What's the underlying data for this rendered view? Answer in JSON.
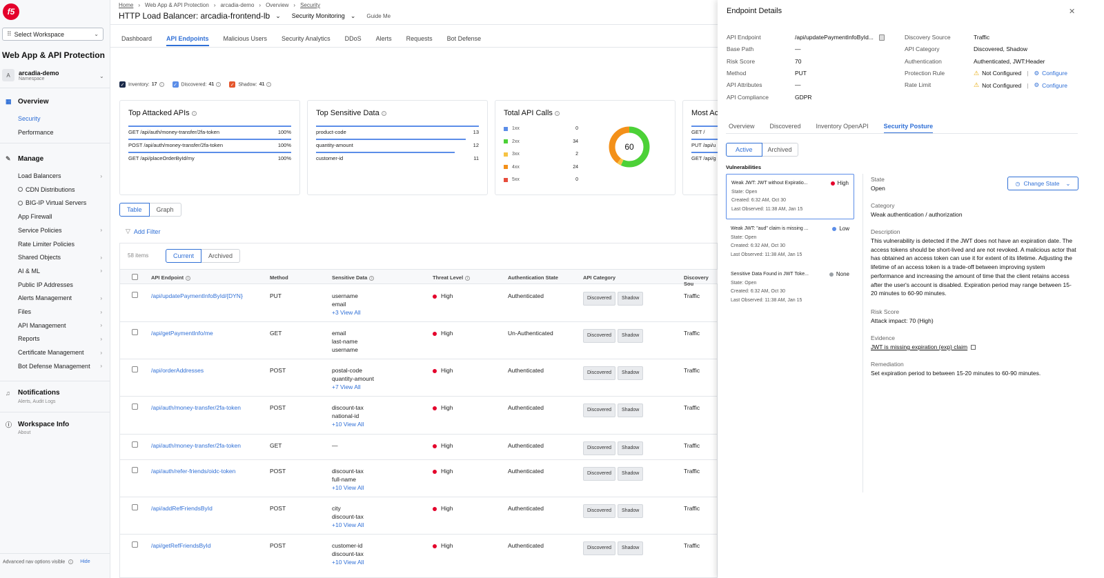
{
  "sidebar": {
    "logo": "f5",
    "workspace_select": "Select Workspace",
    "app_title": "Web App & API Protection",
    "namespace": {
      "avatar": "A",
      "name": "arcadia-demo",
      "label": "Namespace"
    },
    "overview": {
      "title": "Overview",
      "items": [
        "Security",
        "Performance"
      ]
    },
    "manage": {
      "title": "Manage",
      "items": [
        {
          "label": "Load Balancers",
          "chevron": true
        },
        {
          "label": "CDN Distributions",
          "chevron": false
        },
        {
          "label": "BIG-IP Virtual Servers",
          "chevron": false
        },
        {
          "label": "App Firewall",
          "chevron": false
        },
        {
          "label": "Service Policies",
          "chevron": true
        },
        {
          "label": "Rate Limiter Policies",
          "chevron": false
        },
        {
          "label": "Shared Objects",
          "chevron": true
        },
        {
          "label": "AI & ML",
          "chevron": true
        },
        {
          "label": "Public IP Addresses",
          "chevron": false
        },
        {
          "label": "Alerts Management",
          "chevron": true
        },
        {
          "label": "Files",
          "chevron": true
        },
        {
          "label": "API Management",
          "chevron": true
        },
        {
          "label": "Reports",
          "chevron": true
        },
        {
          "label": "Certificate Management",
          "chevron": true
        },
        {
          "label": "Bot Defense Management",
          "chevron": true
        }
      ]
    },
    "notifications": {
      "title": "Notifications",
      "sub": "Alerts, Audit Logs"
    },
    "workspace_info": {
      "title": "Workspace Info",
      "sub": "About"
    },
    "advanced": "Advanced nav options visible",
    "hide": "Hide"
  },
  "breadcrumb": [
    "Home",
    "Web App & API Protection",
    "arcadia-demo",
    "Overview",
    "Security"
  ],
  "header": {
    "title": "HTTP Load Balancer: arcadia-frontend-lb",
    "monitoring": "Security Monitoring",
    "guide": "Guide Me"
  },
  "tabs": [
    "Dashboard",
    "API Endpoints",
    "Malicious Users",
    "Security Analytics",
    "DDoS",
    "Alerts",
    "Requests",
    "Bot Defense"
  ],
  "legend": [
    {
      "label": "Inventory:",
      "count": "17",
      "color": "#1b2a4a"
    },
    {
      "label": "Discovered:",
      "count": "41",
      "color": "#5b8de8"
    },
    {
      "label": "Shadow:",
      "count": "41",
      "color": "#e4572e"
    }
  ],
  "cards": {
    "top_attacked": {
      "title": "Top Attacked APIs",
      "rows": [
        {
          "label": "GET /api/auth/money-transfer/2fa-token",
          "value": "100%",
          "pct": 1.0
        },
        {
          "label": "POST /api/auth/money-transfer/2fa-token",
          "value": "100%",
          "pct": 1.0
        },
        {
          "label": "GET /api/placeOrderById/my",
          "value": "100%",
          "pct": 1.0
        }
      ]
    },
    "top_sensitive": {
      "title": "Top Sensitive Data",
      "rows": [
        {
          "label": "product-code",
          "value": "13",
          "pct": 1.0
        },
        {
          "label": "quantity-amount",
          "value": "12",
          "pct": 0.92
        },
        {
          "label": "customer-id",
          "value": "11",
          "pct": 0.85
        }
      ]
    },
    "total_calls": {
      "title": "Total API Calls",
      "total": "60",
      "rows": [
        {
          "label": "1xx",
          "value": "0",
          "color": "#5b8de8"
        },
        {
          "label": "2xx",
          "value": "34",
          "color": "#4cd137"
        },
        {
          "label": "3xx",
          "value": "2",
          "color": "#f6c344"
        },
        {
          "label": "4xx",
          "value": "24",
          "color": "#f39019"
        },
        {
          "label": "5xx",
          "value": "0",
          "color": "#e74c3c"
        }
      ]
    },
    "most_active": {
      "title": "Most Ac",
      "rows": [
        "GET /",
        "PUT /api/u",
        "GET /api/g"
      ]
    }
  },
  "view_toggle": [
    "Table",
    "Graph"
  ],
  "add_filter": "Add Filter",
  "table": {
    "items_count": "58 items",
    "segments": [
      "Current",
      "Archived"
    ],
    "columns": [
      "API Endpoint",
      "Method",
      "Sensitive Data",
      "Threat Level",
      "Authentication State",
      "API Category",
      "Discovery Sou"
    ],
    "rows": [
      {
        "endpoint": "/api/updatePaymentInfoById/{DYN}",
        "method": "PUT",
        "sensitive": [
          "username",
          "email"
        ],
        "more": "+3 View All",
        "threat": "High",
        "auth": "Authenticated",
        "cats": [
          "Discovered",
          "Shadow"
        ],
        "source": "Traffic"
      },
      {
        "endpoint": "/api/getPaymentInfo/me",
        "method": "GET",
        "sensitive": [
          "email",
          "last-name",
          "username"
        ],
        "more": "",
        "threat": "High",
        "auth": "Un-Authenticated",
        "cats": [
          "Discovered",
          "Shadow"
        ],
        "source": "Traffic"
      },
      {
        "endpoint": "/api/orderAddresses",
        "method": "POST",
        "sensitive": [
          "postal-code",
          "quantity-amount"
        ],
        "more": "+7 View All",
        "threat": "High",
        "auth": "Authenticated",
        "cats": [
          "Discovered",
          "Shadow"
        ],
        "source": "Traffic"
      },
      {
        "endpoint": "/api/auth/money-transfer/2fa-token",
        "method": "POST",
        "sensitive": [
          "discount-tax",
          "national-id"
        ],
        "more": "+10 View All",
        "threat": "High",
        "auth": "Authenticated",
        "cats": [
          "Discovered",
          "Shadow"
        ],
        "source": "Traffic"
      },
      {
        "endpoint": "/api/auth/money-transfer/2fa-token",
        "method": "GET",
        "sensitive": [
          "—"
        ],
        "more": "",
        "threat": "High",
        "auth": "Authenticated",
        "cats": [
          "Discovered",
          "Shadow"
        ],
        "source": "Traffic"
      },
      {
        "endpoint": "/api/auth/refer-friends/oidc-token",
        "method": "POST",
        "sensitive": [
          "discount-tax",
          "full-name"
        ],
        "more": "+10 View All",
        "threat": "High",
        "auth": "Authenticated",
        "cats": [
          "Discovered",
          "Shadow"
        ],
        "source": "Traffic"
      },
      {
        "endpoint": "/api/addRefFriendsById",
        "method": "POST",
        "sensitive": [
          "city",
          "discount-tax"
        ],
        "more": "+10 View All",
        "threat": "High",
        "auth": "Authenticated",
        "cats": [
          "Discovered",
          "Shadow"
        ],
        "source": "Traffic"
      },
      {
        "endpoint": "/api/getRefFriendsById",
        "method": "POST",
        "sensitive": [
          "customer-id",
          "discount-tax"
        ],
        "more": "+10 View All",
        "threat": "High",
        "auth": "Authenticated",
        "cats": [
          "Discovered",
          "Shadow"
        ],
        "source": "Traffic"
      }
    ]
  },
  "panel": {
    "title": "Endpoint Details",
    "left": [
      {
        "label": "API Endpoint",
        "value": "/api/updatePaymentInfoById..."
      },
      {
        "label": "Base Path",
        "value": "—"
      },
      {
        "label": "Risk Score",
        "value": "70"
      },
      {
        "label": "Method",
        "value": "PUT"
      },
      {
        "label": "API Attributes",
        "value": "—"
      },
      {
        "label": "API Compliance",
        "value": "GDPR"
      }
    ],
    "right": [
      {
        "label": "Discovery Source",
        "value": "Traffic"
      },
      {
        "label": "API Category",
        "value": "Discovered, Shadow"
      },
      {
        "label": "Authentication",
        "value": "Authenticated, JWT:Header"
      },
      {
        "label": "Protection Rule",
        "value": "Not Configured",
        "action": "Configure"
      },
      {
        "label": "Rate Limit",
        "value": "Not Configured",
        "action": "Configure"
      }
    ],
    "tabs": [
      "Overview",
      "Discovered",
      "Inventory OpenAPI",
      "Security Posture"
    ],
    "segments": [
      "Active",
      "Archived"
    ],
    "vulnerabilities_title": "Vulnerabilities",
    "vulns": [
      {
        "name": "Weak JWT: JWT without Expiratio...",
        "severity": "High",
        "sev_color": "#e4002b",
        "state": "State: Open",
        "created": "Created: 6:32 AM, Oct 30",
        "observed": "Last Observed: 11:38 AM, Jan 15"
      },
      {
        "name": "Weak JWT: \"aud\" claim is missing ...",
        "severity": "Low",
        "sev_color": "#5b8de8",
        "state": "State: Open",
        "created": "Created: 6:32 AM, Oct 30",
        "observed": "Last Observed: 11:38 AM, Jan 15"
      },
      {
        "name": "Sensitive Data Found in JWT Toke...",
        "severity": "None",
        "sev_color": "#9aa0a6",
        "state": "State: Open",
        "created": "Created: 6:32 AM, Oct 30",
        "observed": "Last Observed: 11:38 AM, Jan 15"
      }
    ],
    "detail": {
      "state_label": "State",
      "state": "Open",
      "change_state": "Change State",
      "category_label": "Category",
      "category": "Weak authentication / authorization",
      "description_label": "Description",
      "description": "This vulnerability is detected if the JWT does not have an expiration date. The access tokens should be short-lived and are not revoked. A malicious actor that has obtained an access token can use it for extent of its lifetime. Adjusting the lifetime of an access token is a trade-off between improving system performance and increasing the amount of time that the client retains access after the user's account is disabled. Expiration period may range between 15-20 minutes to 60-90 minutes.",
      "risk_label": "Risk Score",
      "risk": "Attack impact: 70 (High)",
      "evidence_label": "Evidence",
      "evidence": "JWT is missing expiration (exp) claim",
      "remediation_label": "Remediation",
      "remediation": "Set expiration period to between 15-20 minutes to 60-90 minutes."
    }
  }
}
